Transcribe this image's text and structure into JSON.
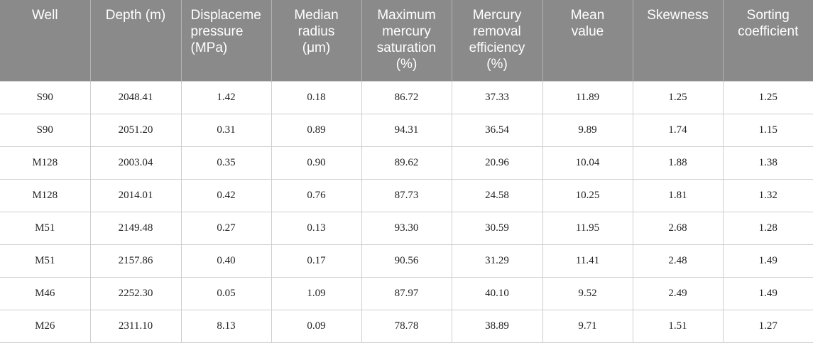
{
  "table": {
    "headers": [
      "Well",
      "Depth (m)",
      "Displaceme\npressure\n(MPa)",
      "Median\nradius\n(μm)",
      "Maximum\nmercury\nsaturation\n(%)",
      "Mercury\nremoval\nefficiency\n(%)",
      "Mean\nvalue",
      "Skewness",
      "Sorting\ncoefficient"
    ],
    "rows": [
      [
        "S90",
        "2048.41",
        "1.42",
        "0.18",
        "86.72",
        "37.33",
        "11.89",
        "1.25",
        "1.25"
      ],
      [
        "S90",
        "2051.20",
        "0.31",
        "0.89",
        "94.31",
        "36.54",
        "9.89",
        "1.74",
        "1.15"
      ],
      [
        "M128",
        "2003.04",
        "0.35",
        "0.90",
        "89.62",
        "20.96",
        "10.04",
        "1.88",
        "1.38"
      ],
      [
        "M128",
        "2014.01",
        "0.42",
        "0.76",
        "87.73",
        "24.58",
        "10.25",
        "1.81",
        "1.32"
      ],
      [
        "M51",
        "2149.48",
        "0.27",
        "0.13",
        "93.30",
        "30.59",
        "11.95",
        "2.68",
        "1.28"
      ],
      [
        "M51",
        "2157.86",
        "0.40",
        "0.17",
        "90.56",
        "31.29",
        "11.41",
        "2.48",
        "1.49"
      ],
      [
        "M46",
        "2252.30",
        "0.05",
        "1.09",
        "87.97",
        "40.10",
        "9.52",
        "2.49",
        "1.49"
      ],
      [
        "M26",
        "2311.10",
        "8.13",
        "0.09",
        "78.78",
        "38.89",
        "9.71",
        "1.51",
        "1.27"
      ]
    ]
  },
  "colors": {
    "header_bg": "#8a8a8a",
    "header_text": "#ffffff",
    "grid": "#cfcfcf"
  }
}
